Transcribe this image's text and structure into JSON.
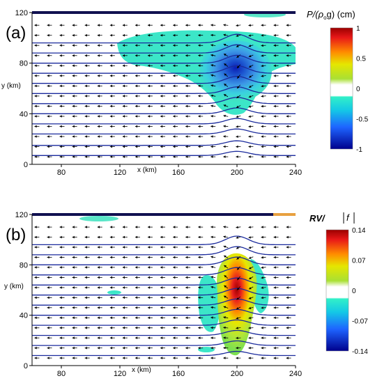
{
  "chart_data": [
    {
      "type": "heatmap",
      "panel_label": "(a)",
      "xlabel": "x (km)",
      "ylabel": "y (km)",
      "xlim": [
        60,
        240
      ],
      "ylim": [
        0,
        120
      ],
      "xticks": [
        "80",
        "120",
        "160",
        "200",
        "240"
      ],
      "yticks": [
        "0",
        "40",
        "80",
        "120"
      ],
      "colorbar": {
        "title_main": "P/(ρ",
        "title_sub": "o",
        "title_end": "g) (cm)",
        "min": -1,
        "max": 1,
        "tick_labels": [
          "1",
          "0.5",
          "0",
          "-0.5",
          "-1"
        ]
      },
      "streamlines_y": [
        7,
        15,
        24,
        32,
        40,
        48,
        56,
        64,
        72,
        80,
        88,
        96
      ],
      "features": [
        {
          "kind": "low",
          "x": 200,
          "y": 80,
          "peak": -0.95
        },
        {
          "kind": "cloud",
          "x": 162,
          "y": 78,
          "value": -0.45
        }
      ]
    },
    {
      "type": "heatmap",
      "panel_label": "(b)",
      "xlabel": "x (km)",
      "ylabel": "y (km)",
      "xlim": [
        60,
        240
      ],
      "ylim": [
        0,
        120
      ],
      "xticks": [
        "80",
        "120",
        "160",
        "200",
        "240"
      ],
      "yticks": [
        "0",
        "40",
        "80",
        "120"
      ],
      "colorbar": {
        "title": "RV/",
        "title_f": "f",
        "min": -0.14,
        "max": 0.14,
        "tick_labels": [
          "0.14",
          "0.07",
          "0",
          "-0.07",
          "-0.14"
        ]
      },
      "streamlines_y": [
        8,
        16,
        24,
        32,
        40,
        48,
        56,
        64,
        72,
        80,
        88,
        96
      ],
      "features": [
        {
          "kind": "high",
          "x": 200,
          "y": 75,
          "peak": 0.13
        },
        {
          "kind": "neg_patch",
          "x": 182,
          "y": 50,
          "value": -0.05
        },
        {
          "kind": "neg_patch",
          "x": 222,
          "y": 55,
          "value": -0.05
        }
      ]
    }
  ]
}
